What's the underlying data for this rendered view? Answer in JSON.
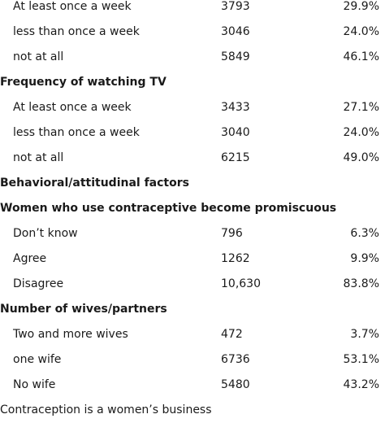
{
  "rows": [
    {
      "type": "item",
      "label": "At least once a week",
      "count": "3793",
      "pct": "29.9%"
    },
    {
      "type": "item",
      "label": "less than once a week",
      "count": "3046",
      "pct": "24.0%"
    },
    {
      "type": "item",
      "label": "not at all",
      "count": "5849",
      "pct": "46.1%"
    },
    {
      "type": "header",
      "label": "Frequency of watching TV"
    },
    {
      "type": "item",
      "label": "At least once a week",
      "count": "3433",
      "pct": "27.1%"
    },
    {
      "type": "item",
      "label": "less than once a week",
      "count": "3040",
      "pct": "24.0%"
    },
    {
      "type": "item",
      "label": "not at all",
      "count": "6215",
      "pct": "49.0%"
    },
    {
      "type": "header",
      "label": "Behavioral/attitudinal factors"
    },
    {
      "type": "header",
      "label": "Women who use contraceptive become promiscuous"
    },
    {
      "type": "item",
      "label": "Don’t know",
      "count": "796",
      "pct": "6.3%"
    },
    {
      "type": "item",
      "label": "Agree",
      "count": "1262",
      "pct": "9.9%"
    },
    {
      "type": "item",
      "label": "Disagree",
      "count": "10,630",
      "pct": "83.8%"
    },
    {
      "type": "header",
      "label": "Number of wives/partners"
    },
    {
      "type": "item",
      "label": "Two and more wives",
      "count": "472",
      "pct": "3.7%"
    },
    {
      "type": "item",
      "label": "one wife",
      "count": "6736",
      "pct": "53.1%"
    },
    {
      "type": "item",
      "label": "No wife",
      "count": "5480",
      "pct": "43.2%"
    },
    {
      "type": "plain",
      "label": "Contraception is a women’s business"
    }
  ]
}
